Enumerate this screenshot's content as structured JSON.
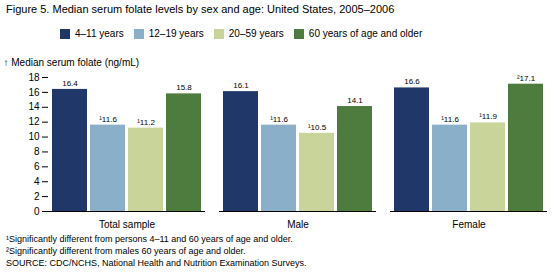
{
  "chart_data": {
    "type": "bar",
    "title": "Figure 5. Median serum folate levels by sex and age: United States, 2005–2006",
    "ylabel": "Median serum folate (ng/mL)",
    "categories": [
      "Total sample",
      "Male",
      "Female"
    ],
    "series": [
      {
        "name": "4–11 years",
        "color": "#1f3869",
        "values": [
          16.4,
          16.1,
          16.6
        ],
        "value_labels": [
          "16.4",
          "16.1",
          "16.6"
        ]
      },
      {
        "name": "12–19 years",
        "color": "#8aafc8",
        "values": [
          11.6,
          11.6,
          11.6
        ],
        "value_labels": [
          "¹11.6",
          "¹11.6",
          "¹11.6"
        ]
      },
      {
        "name": "20–59 years",
        "color": "#c8d49a",
        "values": [
          11.2,
          10.5,
          11.9
        ],
        "value_labels": [
          "¹11.2",
          "¹10.5",
          "¹11.9"
        ]
      },
      {
        "name": "60 years of age and older",
        "color": "#4e7c3f",
        "values": [
          15.8,
          14.1,
          17.1
        ],
        "value_labels": [
          "15.8",
          "14.1",
          "²17.1"
        ]
      }
    ],
    "ylim": [
      0,
      18
    ],
    "yticks": [
      0,
      2,
      4,
      6,
      8,
      10,
      12,
      14,
      16,
      18
    ],
    "grid": false,
    "data_labels": true,
    "legend": "top",
    "annotations": [
      "¹Significantly different from persons 4–11 and 60 years of age and older.",
      "²Significantly different from males 60 years of age and older.",
      "SOURCE: CDC/NCHS, National Health and Nutrition Examination Surveys."
    ]
  }
}
